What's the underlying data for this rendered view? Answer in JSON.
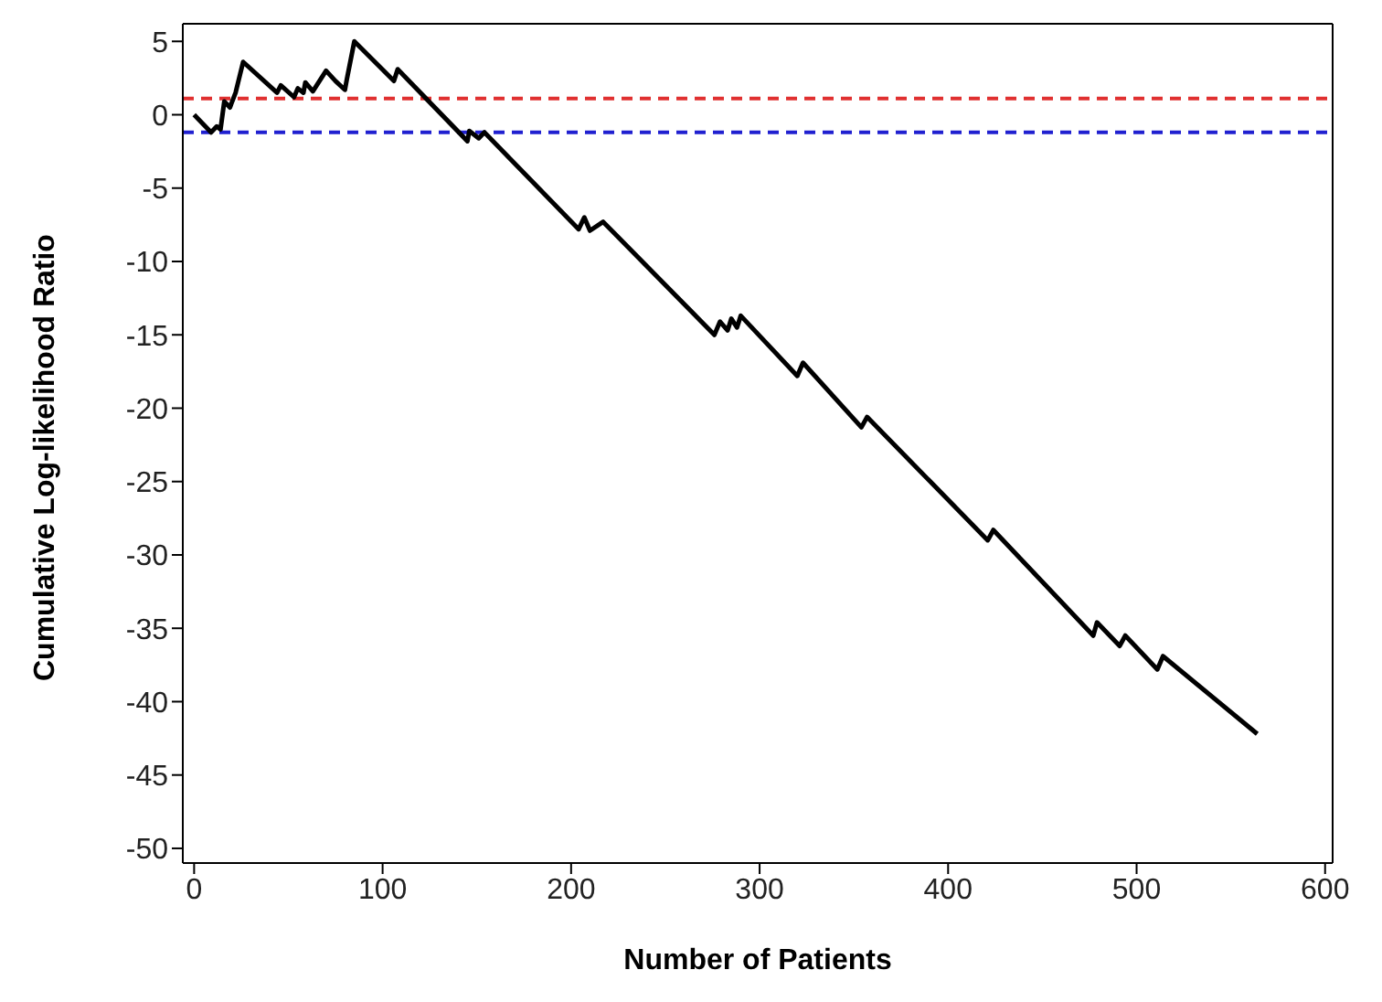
{
  "chart_data": {
    "type": "line",
    "xlabel": "Number of Patients",
    "ylabel": "Cumulative Log-likelihood Ratio",
    "xlim": [
      -6,
      604
    ],
    "xticks": [
      0,
      100,
      200,
      300,
      400,
      500,
      600
    ],
    "ylim": [
      -51,
      6.2
    ],
    "yticks": [
      5,
      0,
      -5,
      -10,
      -15,
      -20,
      -25,
      -30,
      -35,
      -40,
      -45,
      -50
    ],
    "grid": false,
    "legend": false,
    "marker": "none",
    "line_style": "solid",
    "series": [
      {
        "color": "#000000",
        "x": [
          0,
          9,
          12,
          14,
          16,
          19,
          22,
          26,
          44,
          46,
          53,
          55,
          58,
          59,
          63,
          70,
          75,
          80,
          81,
          85,
          106,
          108,
          145,
          146,
          151,
          154,
          204,
          207,
          210,
          217,
          276,
          279,
          283,
          285,
          288,
          290,
          320,
          323,
          354,
          357,
          421,
          424,
          477,
          479,
          491,
          494,
          511,
          514,
          564
        ],
        "values": [
          0,
          -1.2,
          -0.8,
          -1,
          0.9,
          0.5,
          1.5,
          3.6,
          1.5,
          2,
          1.2,
          1.8,
          1.5,
          2.2,
          1.6,
          3,
          2.3,
          1.7,
          2.4,
          5,
          2.3,
          3.1,
          -1.8,
          -1.1,
          -1.6,
          -1.2,
          -7.8,
          -7,
          -7.9,
          -7.3,
          -15,
          -14.1,
          -14.7,
          -13.9,
          -14.5,
          -13.7,
          -17.8,
          -16.9,
          -21.3,
          -20.6,
          -29,
          -28.3,
          -35.5,
          -34.6,
          -36.2,
          -35.5,
          -37.8,
          -36.9,
          -42.2
        ]
      }
    ],
    "ref_lines": [
      {
        "axis": "y",
        "value": 1.1,
        "color": "#e03030",
        "line_style": "dashed"
      },
      {
        "axis": "y",
        "value": -1.2,
        "color": "#2020d0",
        "line_style": "dashed"
      }
    ]
  }
}
